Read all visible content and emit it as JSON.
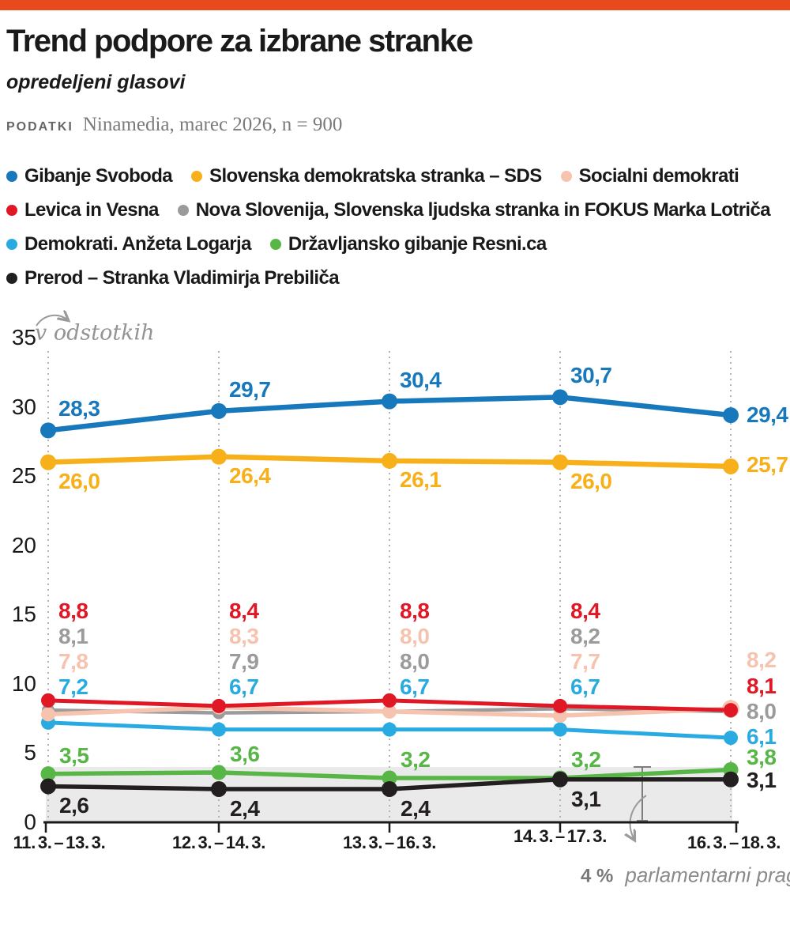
{
  "header": {
    "title": "Trend podpore za izbrane stranke",
    "subtitle": "opredeljeni glasovi",
    "source_label": "PODATKI",
    "source_text": "Ninamedia, marec 2026, n = 900"
  },
  "accent_color": "#E94A1C",
  "chart_data": {
    "type": "line",
    "unit_label": "v odstotkih",
    "categories": [
      "11. 3. – 13. 3.",
      "12. 3. – 14. 3.",
      "13. 3. – 16. 3.",
      "14. 3. – 17. 3.",
      "16. 3. – 18. 3."
    ],
    "ylim": [
      0,
      35
    ],
    "yticks": [
      0,
      5,
      10,
      15,
      20,
      25,
      30,
      35
    ],
    "grid": "vertical-dotted",
    "legend_position": "top",
    "threshold": {
      "value": 4,
      "label_value": "4 %",
      "label_text": "parlamentarni prag"
    },
    "series": [
      {
        "name": "Gibanje Svoboda",
        "color": "#1878BC",
        "values": [
          28.3,
          29.7,
          30.4,
          30.7,
          29.4
        ]
      },
      {
        "name": "Slovenska demokratska stranka – SDS",
        "color": "#F7B019",
        "values": [
          26.0,
          26.4,
          26.1,
          26.0,
          25.7
        ]
      },
      {
        "name": "Socialni demokrati",
        "color": "#F5C3AE",
        "values": [
          7.8,
          8.3,
          8.0,
          7.7,
          8.2
        ]
      },
      {
        "name": "Levica in Vesna",
        "color": "#E01826",
        "values": [
          8.8,
          8.4,
          8.8,
          8.4,
          8.1
        ]
      },
      {
        "name": "Nova Slovenija, Slovenska ljudska stranka in FOKUS Marka Lotriča",
        "color": "#9B9B9B",
        "values": [
          8.1,
          7.9,
          8.0,
          8.2,
          8.0
        ]
      },
      {
        "name": "Demokrati. Anžeta Logarja",
        "color": "#29ABE2",
        "values": [
          7.2,
          6.7,
          6.7,
          6.7,
          6.1
        ]
      },
      {
        "name": "Državljansko gibanje Resni.ca",
        "color": "#58B647",
        "values": [
          3.5,
          3.6,
          3.2,
          3.2,
          3.8
        ]
      },
      {
        "name": "Prerod – Stranka Vladimirja Prebiliča",
        "color": "#231F20",
        "values": [
          2.6,
          2.4,
          2.4,
          3.1,
          3.1
        ]
      }
    ],
    "legend_rows": [
      [
        0,
        1,
        2
      ],
      [
        3,
        4
      ],
      [
        5,
        6
      ],
      [
        7
      ]
    ]
  }
}
